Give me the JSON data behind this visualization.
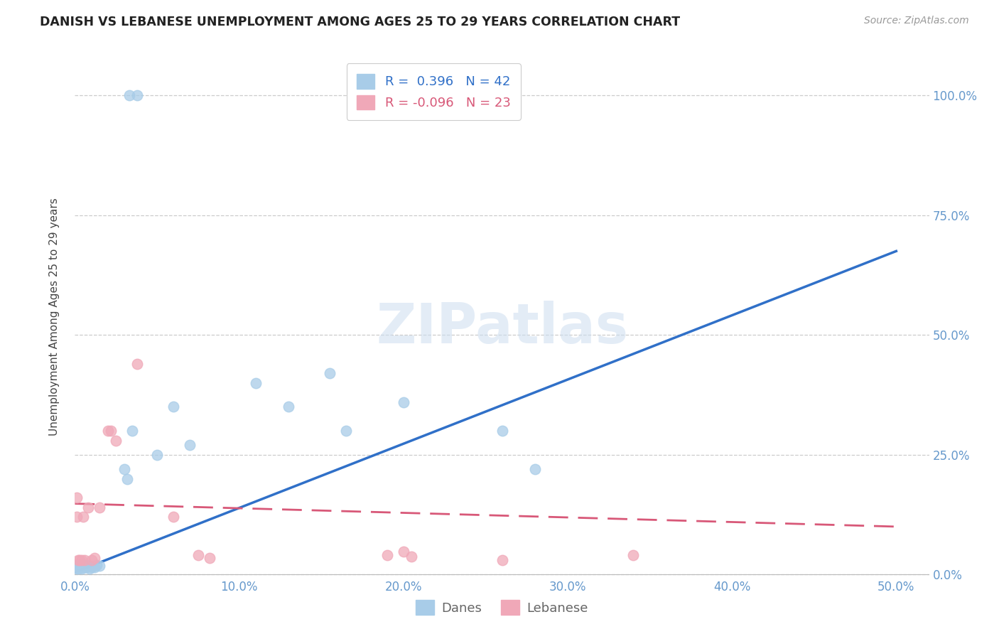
{
  "title": "DANISH VS LEBANESE UNEMPLOYMENT AMONG AGES 25 TO 29 YEARS CORRELATION CHART",
  "source": "Source: ZipAtlas.com",
  "ylabel": "Unemployment Among Ages 25 to 29 years",
  "xlim": [
    0.0,
    0.52
  ],
  "ylim": [
    -0.005,
    1.08
  ],
  "xtick_vals": [
    0.0,
    0.1,
    0.2,
    0.3,
    0.4,
    0.5
  ],
  "xtick_labels": [
    "0.0%",
    "10.0%",
    "20.0%",
    "30.0%",
    "40.0%",
    "50.0%"
  ],
  "ytick_vals": [
    0.0,
    0.25,
    0.5,
    0.75,
    1.0
  ],
  "ytick_labels": [
    "0.0%",
    "25.0%",
    "50.0%",
    "75.0%",
    "100.0%"
  ],
  "danes_color": "#a8cce8",
  "lebanese_color": "#f0a8b8",
  "danes_line_color": "#3070c8",
  "lebanese_line_color": "#d85878",
  "danes_R": 0.396,
  "danes_N": 42,
  "lebanese_R": -0.096,
  "lebanese_N": 23,
  "danes_line_x0": 0.0,
  "danes_line_y0": 0.005,
  "danes_line_x1": 0.5,
  "danes_line_y1": 0.675,
  "leb_line_x0": 0.0,
  "leb_line_y0": 0.148,
  "leb_line_x1": 0.5,
  "leb_line_y1": 0.1,
  "danes_x": [
    0.001,
    0.001,
    0.001,
    0.002,
    0.002,
    0.002,
    0.003,
    0.003,
    0.003,
    0.004,
    0.004,
    0.004,
    0.005,
    0.005,
    0.005,
    0.006,
    0.006,
    0.007,
    0.008,
    0.008,
    0.009,
    0.01,
    0.01,
    0.011,
    0.012,
    0.013,
    0.015,
    0.03,
    0.032,
    0.035,
    0.05,
    0.06,
    0.07,
    0.11,
    0.13,
    0.155,
    0.165,
    0.2,
    0.26,
    0.28,
    0.033,
    0.038
  ],
  "danes_y": [
    0.015,
    0.02,
    0.012,
    0.018,
    0.015,
    0.012,
    0.018,
    0.015,
    0.02,
    0.018,
    0.012,
    0.015,
    0.02,
    0.015,
    0.018,
    0.015,
    0.02,
    0.015,
    0.02,
    0.018,
    0.012,
    0.018,
    0.015,
    0.018,
    0.015,
    0.02,
    0.018,
    0.22,
    0.2,
    0.3,
    0.25,
    0.35,
    0.27,
    0.4,
    0.35,
    0.42,
    0.3,
    0.36,
    0.3,
    0.22,
    1.0,
    1.0
  ],
  "lebanese_x": [
    0.001,
    0.001,
    0.002,
    0.003,
    0.004,
    0.005,
    0.006,
    0.008,
    0.01,
    0.012,
    0.015,
    0.02,
    0.022,
    0.025,
    0.038,
    0.06,
    0.075,
    0.082,
    0.19,
    0.2,
    0.205,
    0.26,
    0.34
  ],
  "lebanese_y": [
    0.12,
    0.16,
    0.03,
    0.03,
    0.03,
    0.12,
    0.03,
    0.14,
    0.03,
    0.035,
    0.14,
    0.3,
    0.3,
    0.28,
    0.44,
    0.12,
    0.04,
    0.035,
    0.04,
    0.048,
    0.038,
    0.03,
    0.04
  ]
}
